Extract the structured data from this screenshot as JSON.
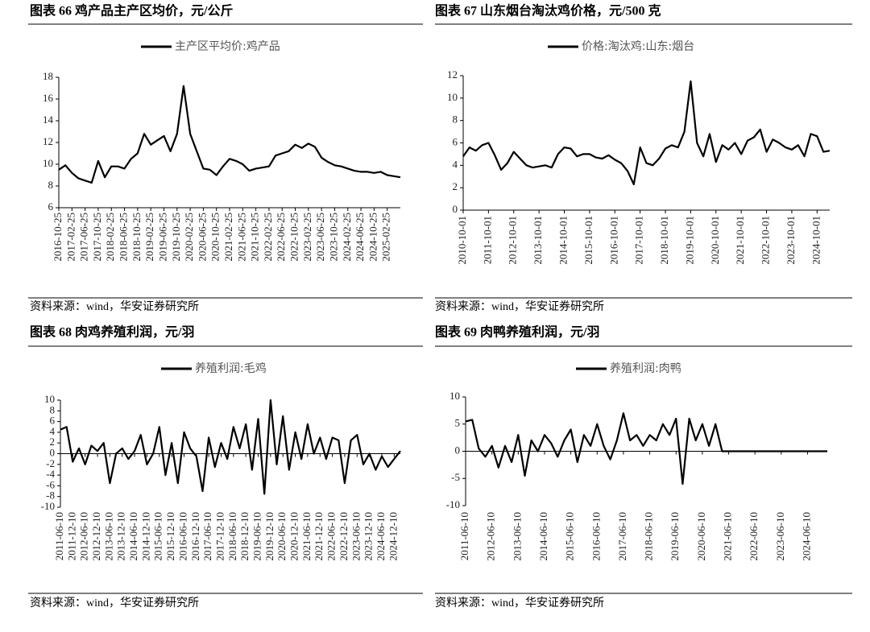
{
  "chart_data": [
    {
      "type": "line",
      "title": "图表 66 鸡产品主产区均价，元/公斤",
      "source": "资料来源：wind，华安证券研究所",
      "categories": [
        "2016-10-25",
        null,
        "2017-02-25",
        null,
        "2017-06-25",
        null,
        "2017-10-25",
        null,
        "2018-02-25",
        null,
        "2018-06-25",
        null,
        "2018-10-25",
        null,
        "2019-02-25",
        null,
        "2019-06-25",
        null,
        "2019-10-25",
        null,
        "2020-02-25",
        null,
        "2020-06-25",
        null,
        "2020-10-25",
        null,
        "2021-02-25",
        null,
        "2021-06-25",
        null,
        "2021-10-25",
        null,
        "2022-02-25",
        null,
        "2022-06-25",
        null,
        "2022-10-25",
        null,
        "2023-02-25",
        null,
        "2023-06-25",
        null,
        "2023-10-25",
        null,
        "2024-02-25",
        null,
        "2024-06-25",
        null,
        "2024-10-25",
        null,
        "2025-02-25",
        null,
        null
      ],
      "series": [
        {
          "name": "主产区平均价:鸡产品",
          "color": "#000000",
          "values": [
            9.5,
            9.9,
            9.2,
            8.7,
            8.5,
            8.3,
            10.3,
            8.8,
            9.8,
            9.8,
            9.6,
            10.5,
            11.0,
            12.8,
            11.8,
            12.2,
            12.6,
            11.2,
            12.8,
            17.2,
            12.8,
            11.2,
            9.6,
            9.5,
            9.0,
            9.8,
            10.5,
            10.3,
            10.0,
            9.4,
            9.6,
            9.7,
            9.8,
            10.8,
            11.0,
            11.2,
            11.8,
            11.5,
            11.9,
            11.6,
            10.6,
            10.2,
            9.9,
            9.8,
            9.6,
            9.4,
            9.3,
            9.3,
            9.2,
            9.3,
            9.0,
            8.9,
            8.8
          ]
        }
      ],
      "ylim": [
        6,
        18
      ],
      "yticks": [
        6,
        8,
        10,
        12,
        14,
        16,
        18
      ]
    },
    {
      "type": "line",
      "title": "图表 67 山东烟台淘汰鸡价格，元/500 克",
      "source": "资料来源：wind，华安证券研究所",
      "categories": [
        "2010-10-01",
        null,
        null,
        null,
        "2011-10-01",
        null,
        null,
        null,
        "2012-10-01",
        null,
        null,
        null,
        "2013-10-01",
        null,
        null,
        null,
        "2014-10-01",
        null,
        null,
        null,
        "2015-10-01",
        null,
        null,
        null,
        "2016-10-01",
        null,
        null,
        null,
        "2017-10-01",
        null,
        null,
        null,
        "2018-10-01",
        null,
        null,
        null,
        "2019-10-01",
        null,
        null,
        null,
        "2020-10-01",
        null,
        null,
        null,
        "2021-10-01",
        null,
        null,
        null,
        "2022-10-01",
        null,
        null,
        null,
        "2023-10-01",
        null,
        null,
        null,
        "2024-10-01",
        null,
        null
      ],
      "series": [
        {
          "name": "价格:淘汰鸡:山东:烟台",
          "color": "#000000",
          "values": [
            4.8,
            5.6,
            5.3,
            5.8,
            6.0,
            4.9,
            3.6,
            4.2,
            5.2,
            4.6,
            4.0,
            3.8,
            3.9,
            4.0,
            3.8,
            5.0,
            5.6,
            5.5,
            4.8,
            5.0,
            5.0,
            4.7,
            4.6,
            4.9,
            4.5,
            4.2,
            3.5,
            2.3,
            5.6,
            4.2,
            4.0,
            4.6,
            5.5,
            5.8,
            5.6,
            7.0,
            11.5,
            6.0,
            4.8,
            6.8,
            4.3,
            5.8,
            5.4,
            6.0,
            5.0,
            6.2,
            6.5,
            7.2,
            5.2,
            6.3,
            6.0,
            5.6,
            5.4,
            5.8,
            4.8,
            6.8,
            6.6,
            5.2,
            5.3
          ]
        }
      ],
      "ylim": [
        0,
        12
      ],
      "yticks": [
        0,
        2,
        4,
        6,
        8,
        10,
        12
      ]
    },
    {
      "type": "line",
      "title": "图表 68 肉鸡养殖利润，元/羽",
      "source": "资料来源：wind，华安证券研究所",
      "categories": [
        "2011-06-10",
        null,
        "2011-12-10",
        null,
        "2012-06-10",
        null,
        "2012-12-10",
        null,
        "2013-06-10",
        null,
        "2013-12-10",
        null,
        "2014-06-10",
        null,
        "2014-12-10",
        null,
        "2015-06-10",
        null,
        "2015-12-10",
        null,
        "2016-06-10",
        null,
        "2016-12-10",
        null,
        "2017-06-10",
        null,
        "2017-12-10",
        null,
        "2018-06-10",
        null,
        "2018-12-10",
        null,
        "2019-06-10",
        null,
        "2019-12-10",
        null,
        "2020-06-10",
        null,
        "2020-12-10",
        null,
        "2021-06-10",
        null,
        "2021-12-10",
        null,
        "2022-06-10",
        null,
        "2022-12-10",
        null,
        "2023-06-10",
        null,
        "2023-12-10",
        null,
        "2024-06-10",
        null,
        "2024-12-10",
        null
      ],
      "series": [
        {
          "name": "养殖利润:毛鸡",
          "color": "#000000",
          "values": [
            4.5,
            5,
            -1.5,
            1,
            -2,
            1.5,
            0.5,
            2,
            -5.5,
            0,
            1,
            -1,
            0.5,
            3.5,
            -2,
            0,
            5,
            -4,
            2,
            -5.5,
            4,
            1,
            -0.5,
            -7,
            3,
            -2.5,
            2,
            -1,
            5,
            1,
            5.5,
            -3,
            6.5,
            -7.5,
            10,
            -2,
            7,
            -3,
            4,
            -1,
            5.5,
            0,
            3,
            -1,
            3,
            2.5,
            -5.5,
            2.5,
            3.5,
            -2,
            0,
            -3,
            -0.5,
            -2.5,
            -1,
            0.5
          ]
        }
      ],
      "ylim": [
        -10,
        10
      ],
      "yticks": [
        -10,
        -8,
        -6,
        -4,
        -2,
        0,
        2,
        4,
        6,
        8,
        10
      ]
    },
    {
      "type": "line",
      "title": "图表 69 肉鸭养殖利润，元/羽",
      "source": "资料来源：wind，华安证券研究所",
      "categories": [
        "2011-06-10",
        null,
        null,
        null,
        "2012-06-10",
        null,
        null,
        null,
        "2013-06-10",
        null,
        null,
        null,
        "2014-06-10",
        null,
        null,
        null,
        "2015-06-10",
        null,
        null,
        null,
        "2016-06-10",
        null,
        null,
        null,
        "2017-06-10",
        null,
        null,
        null,
        "2018-06-10",
        null,
        null,
        null,
        "2019-06-10",
        null,
        null,
        null,
        "2020-06-10",
        null,
        null,
        null,
        "2021-06-10",
        null,
        null,
        null,
        "2022-06-10",
        null,
        null,
        null,
        "2023-06-10",
        null,
        null,
        null,
        "2024-06-10",
        null,
        null,
        null
      ],
      "series": [
        {
          "name": "养殖利润:肉鸭",
          "color": "#000000",
          "values": [
            5.5,
            5.8,
            0.5,
            -1,
            1,
            -3,
            1,
            -2,
            3,
            -4.5,
            2,
            0,
            3,
            1.5,
            -1,
            2,
            4,
            -2,
            3,
            1,
            5,
            1,
            -1.5,
            2,
            7,
            2,
            3,
            1,
            3,
            2,
            5,
            3,
            6,
            -6,
            6,
            2,
            5,
            1,
            5,
            0,
            0,
            0,
            0,
            0,
            0,
            0,
            0,
            0,
            0,
            0,
            0,
            0,
            0,
            0,
            0,
            0
          ]
        }
      ],
      "ylim": [
        -10,
        10
      ],
      "yticks": [
        -10,
        -5,
        0,
        5,
        10
      ]
    }
  ]
}
